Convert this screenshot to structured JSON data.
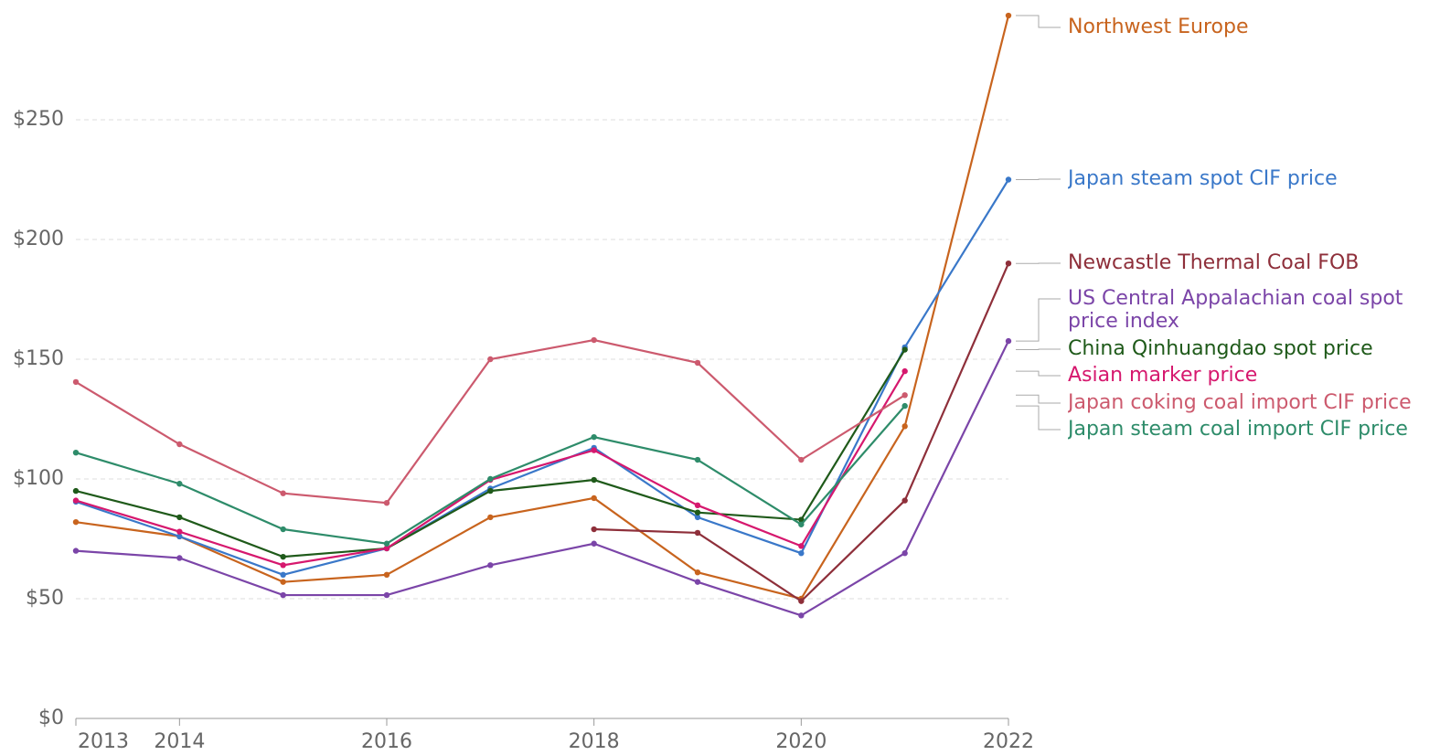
{
  "chart_data": {
    "type": "line",
    "x": [
      2013,
      2014,
      2015,
      2016,
      2017,
      2018,
      2019,
      2020,
      2021,
      2022
    ],
    "xlim": [
      2013,
      2022
    ],
    "xticks": [
      2013,
      2014,
      2016,
      2018,
      2020,
      2022
    ],
    "ylim": [
      0,
      300
    ],
    "yticks": [
      {
        "value": 0,
        "label": "$0"
      },
      {
        "value": 50,
        "label": "$50"
      },
      {
        "value": 100,
        "label": "$100"
      },
      {
        "value": 150,
        "label": "$150"
      },
      {
        "value": 200,
        "label": "$200"
      },
      {
        "value": 250,
        "label": "$250"
      }
    ],
    "grid": true,
    "series": [
      {
        "name": "Northwest Europe",
        "color": "#c8641e",
        "values": [
          82,
          76,
          57,
          60,
          84,
          92,
          61,
          50,
          122,
          293.5
        ]
      },
      {
        "name": "Japan steam spot CIF price",
        "color": "#3a78c9",
        "values": [
          90.5,
          76,
          60,
          71,
          96,
          113,
          84,
          69,
          155,
          225
        ]
      },
      {
        "name": "Newcastle Thermal Coal FOB",
        "color": "#8e2f3a",
        "values": [
          null,
          null,
          null,
          null,
          null,
          79,
          77.5,
          49,
          91,
          190
        ]
      },
      {
        "name": "US Central Appalachian coal spot price index",
        "color": "#7b45a8",
        "values": [
          70,
          67,
          51.5,
          51.5,
          64,
          73,
          57,
          43,
          69,
          157.6
        ]
      },
      {
        "name": "China Qinhuangdao spot price",
        "color": "#1f5a1a",
        "values": [
          95,
          84,
          67.5,
          71,
          95,
          99.6,
          86,
          83,
          154,
          null
        ]
      },
      {
        "name": "Asian marker price",
        "color": "#d6186e",
        "values": [
          91,
          78,
          64,
          71,
          99.6,
          112,
          89,
          72,
          145,
          null
        ]
      },
      {
        "name": "Japan coking coal import CIF price",
        "color": "#cc5a6e",
        "values": [
          140.5,
          114.5,
          94,
          90,
          150,
          158,
          148.5,
          108,
          135,
          null
        ]
      },
      {
        "name": "Japan steam coal import CIF price",
        "color": "#2e8c6a",
        "values": [
          111,
          98,
          79,
          73,
          100,
          117.5,
          108,
          81,
          130.5,
          null
        ]
      }
    ]
  }
}
